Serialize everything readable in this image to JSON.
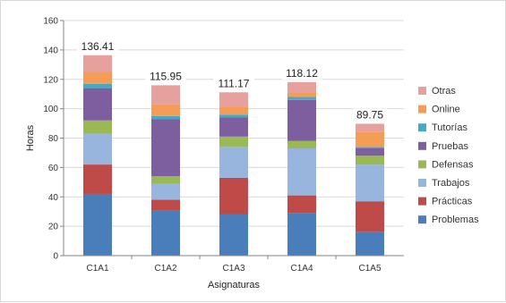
{
  "chart_data": {
    "type": "bar",
    "stacked": true,
    "categories": [
      "C1A1",
      "C1A2",
      "C1A3",
      "C1A4",
      "C1A5"
    ],
    "series": [
      {
        "name": "Problemas",
        "color": "#4a7ebb",
        "values": [
          42,
          31,
          28,
          29,
          16
        ]
      },
      {
        "name": "Prácticas",
        "color": "#be4b48",
        "values": [
          20,
          7,
          25,
          12,
          21
        ]
      },
      {
        "name": "Trabajos",
        "color": "#98b5de",
        "values": [
          21,
          11,
          21,
          32,
          25
        ]
      },
      {
        "name": "Defensas",
        "color": "#98b954",
        "values": [
          9,
          5,
          7,
          5,
          6
        ]
      },
      {
        "name": "Pruebas",
        "color": "#7d5fa0",
        "values": [
          22,
          39,
          13,
          28,
          5
        ]
      },
      {
        "name": "Tutorías",
        "color": "#46aac5",
        "values": [
          3,
          2,
          2,
          2,
          1
        ]
      },
      {
        "name": "Online",
        "color": "#f59d56",
        "values": [
          8,
          8,
          5,
          3,
          10
        ]
      },
      {
        "name": "Otras",
        "color": "#e6a09e",
        "values": [
          11.41,
          12.95,
          10.17,
          7.12,
          5.75
        ]
      }
    ],
    "totals": [
      "136.41",
      "115.95",
      "111.17",
      "118.12",
      "89.75"
    ],
    "xlabel": "Asignaturas",
    "ylabel": "Horas",
    "ylim": [
      0,
      160
    ],
    "yticks": [
      0,
      20,
      40,
      60,
      80,
      100,
      120,
      140,
      160
    ],
    "grid": "horizontal",
    "legend": "right"
  }
}
